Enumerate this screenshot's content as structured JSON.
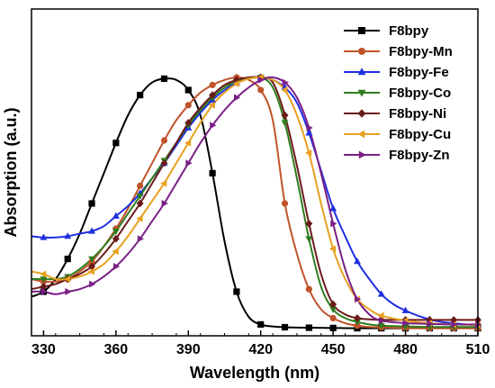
{
  "chart_data": {
    "type": "line",
    "xlabel": "Wavelength (nm)",
    "ylabel": "Absorption (a.u.)",
    "xlim": [
      325,
      510
    ],
    "ylim": [
      0,
      1.0
    ],
    "x_ticks": [
      330,
      360,
      390,
      420,
      450,
      480,
      510
    ],
    "y_ticks_shown": false,
    "grid": false,
    "legend_position": "top-right",
    "series": [
      {
        "name": "F8bpy",
        "color": "#000000",
        "marker": "square",
        "points": [
          [
            325,
            0.13
          ],
          [
            330,
            0.15
          ],
          [
            335,
            0.2
          ],
          [
            340,
            0.28
          ],
          [
            345,
            0.38
          ],
          [
            350,
            0.5
          ],
          [
            355,
            0.62
          ],
          [
            360,
            0.74
          ],
          [
            365,
            0.85
          ],
          [
            370,
            0.93
          ],
          [
            375,
            0.98
          ],
          [
            380,
            0.995
          ],
          [
            385,
            0.99
          ],
          [
            390,
            0.95
          ],
          [
            395,
            0.85
          ],
          [
            400,
            0.62
          ],
          [
            405,
            0.35
          ],
          [
            410,
            0.15
          ],
          [
            415,
            0.05
          ],
          [
            420,
            0.02
          ],
          [
            425,
            0.012
          ],
          [
            430,
            0.009
          ],
          [
            440,
            0.007
          ],
          [
            450,
            0.006
          ],
          [
            460,
            0.005
          ],
          [
            470,
            0.005
          ],
          [
            480,
            0.005
          ],
          [
            490,
            0.005
          ],
          [
            500,
            0.005
          ],
          [
            510,
            0.005
          ]
        ]
      },
      {
        "name": "F8bpy-Mn",
        "color": "#C0532A",
        "marker": "circle",
        "points": [
          [
            325,
            0.2
          ],
          [
            330,
            0.19
          ],
          [
            335,
            0.19
          ],
          [
            340,
            0.2
          ],
          [
            345,
            0.23
          ],
          [
            350,
            0.27
          ],
          [
            355,
            0.33
          ],
          [
            360,
            0.4
          ],
          [
            365,
            0.48
          ],
          [
            370,
            0.57
          ],
          [
            375,
            0.66
          ],
          [
            380,
            0.75
          ],
          [
            385,
            0.83
          ],
          [
            390,
            0.89
          ],
          [
            395,
            0.94
          ],
          [
            400,
            0.97
          ],
          [
            405,
            0.99
          ],
          [
            410,
            1.0
          ],
          [
            415,
            0.99
          ],
          [
            420,
            0.95
          ],
          [
            425,
            0.83
          ],
          [
            430,
            0.5
          ],
          [
            435,
            0.3
          ],
          [
            440,
            0.16
          ],
          [
            445,
            0.08
          ],
          [
            450,
            0.045
          ],
          [
            455,
            0.025
          ],
          [
            460,
            0.015
          ],
          [
            465,
            0.01
          ],
          [
            470,
            0.008
          ],
          [
            480,
            0.006
          ],
          [
            490,
            0.005
          ],
          [
            500,
            0.005
          ],
          [
            510,
            0.005
          ]
        ]
      },
      {
        "name": "F8bpy-Fe",
        "color": "#1F2FE0",
        "marker": "triangle-up",
        "points": [
          [
            325,
            0.37
          ],
          [
            330,
            0.365
          ],
          [
            335,
            0.365
          ],
          [
            340,
            0.37
          ],
          [
            345,
            0.38
          ],
          [
            350,
            0.39
          ],
          [
            355,
            0.41
          ],
          [
            360,
            0.45
          ],
          [
            365,
            0.49
          ],
          [
            370,
            0.54
          ],
          [
            375,
            0.6
          ],
          [
            380,
            0.66
          ],
          [
            385,
            0.73
          ],
          [
            390,
            0.8
          ],
          [
            395,
            0.86
          ],
          [
            400,
            0.91
          ],
          [
            405,
            0.95
          ],
          [
            410,
            0.98
          ],
          [
            415,
            0.995
          ],
          [
            420,
            1.0
          ],
          [
            425,
            0.99
          ],
          [
            430,
            0.96
          ],
          [
            435,
            0.9
          ],
          [
            440,
            0.78
          ],
          [
            445,
            0.63
          ],
          [
            450,
            0.48
          ],
          [
            455,
            0.37
          ],
          [
            460,
            0.27
          ],
          [
            465,
            0.2
          ],
          [
            470,
            0.14
          ],
          [
            475,
            0.1
          ],
          [
            480,
            0.075
          ],
          [
            485,
            0.055
          ],
          [
            490,
            0.04
          ],
          [
            495,
            0.03
          ],
          [
            500,
            0.025
          ],
          [
            505,
            0.02
          ],
          [
            510,
            0.018
          ]
        ]
      },
      {
        "name": "F8bpy-Co",
        "color": "#2E7D1E",
        "marker": "triangle-down",
        "points": [
          [
            325,
            0.2
          ],
          [
            330,
            0.2
          ],
          [
            335,
            0.2
          ],
          [
            340,
            0.21
          ],
          [
            345,
            0.24
          ],
          [
            350,
            0.28
          ],
          [
            355,
            0.33
          ],
          [
            360,
            0.39
          ],
          [
            365,
            0.46
          ],
          [
            370,
            0.53
          ],
          [
            375,
            0.6
          ],
          [
            380,
            0.67
          ],
          [
            385,
            0.74
          ],
          [
            390,
            0.81
          ],
          [
            395,
            0.87
          ],
          [
            400,
            0.92
          ],
          [
            405,
            0.96
          ],
          [
            410,
            0.985
          ],
          [
            415,
            0.995
          ],
          [
            420,
            1.0
          ],
          [
            425,
            0.96
          ],
          [
            430,
            0.82
          ],
          [
            435,
            0.6
          ],
          [
            440,
            0.36
          ],
          [
            445,
            0.17
          ],
          [
            450,
            0.08
          ],
          [
            455,
            0.045
          ],
          [
            460,
            0.03
          ],
          [
            465,
            0.02
          ],
          [
            470,
            0.015
          ],
          [
            480,
            0.012
          ],
          [
            490,
            0.01
          ],
          [
            500,
            0.01
          ],
          [
            510,
            0.01
          ]
        ]
      },
      {
        "name": "F8bpy-Ni",
        "color": "#6B1A1A",
        "marker": "diamond",
        "points": [
          [
            325,
            0.16
          ],
          [
            330,
            0.17
          ],
          [
            335,
            0.18
          ],
          [
            340,
            0.2
          ],
          [
            345,
            0.22
          ],
          [
            350,
            0.25
          ],
          [
            355,
            0.3
          ],
          [
            360,
            0.36
          ],
          [
            365,
            0.43
          ],
          [
            370,
            0.5
          ],
          [
            375,
            0.58
          ],
          [
            380,
            0.66
          ],
          [
            385,
            0.74
          ],
          [
            390,
            0.82
          ],
          [
            395,
            0.88
          ],
          [
            400,
            0.93
          ],
          [
            405,
            0.97
          ],
          [
            410,
            0.99
          ],
          [
            415,
            1.0
          ],
          [
            420,
            1.0
          ],
          [
            425,
            0.98
          ],
          [
            430,
            0.85
          ],
          [
            435,
            0.65
          ],
          [
            440,
            0.42
          ],
          [
            445,
            0.22
          ],
          [
            450,
            0.1
          ],
          [
            455,
            0.06
          ],
          [
            460,
            0.045
          ],
          [
            465,
            0.04
          ],
          [
            470,
            0.038
          ],
          [
            480,
            0.038
          ],
          [
            490,
            0.038
          ],
          [
            500,
            0.038
          ],
          [
            510,
            0.038
          ]
        ]
      },
      {
        "name": "F8bpy-Cu",
        "color": "#E8A020",
        "marker": "triangle-left",
        "points": [
          [
            325,
            0.23
          ],
          [
            330,
            0.22
          ],
          [
            335,
            0.2
          ],
          [
            340,
            0.2
          ],
          [
            345,
            0.21
          ],
          [
            350,
            0.23
          ],
          [
            355,
            0.26
          ],
          [
            360,
            0.31
          ],
          [
            365,
            0.37
          ],
          [
            370,
            0.44
          ],
          [
            375,
            0.51
          ],
          [
            380,
            0.58
          ],
          [
            385,
            0.66
          ],
          [
            390,
            0.74
          ],
          [
            395,
            0.82
          ],
          [
            400,
            0.89
          ],
          [
            405,
            0.94
          ],
          [
            410,
            0.975
          ],
          [
            415,
            0.995
          ],
          [
            420,
            1.0
          ],
          [
            425,
            0.99
          ],
          [
            430,
            0.95
          ],
          [
            435,
            0.85
          ],
          [
            440,
            0.7
          ],
          [
            445,
            0.5
          ],
          [
            450,
            0.32
          ],
          [
            455,
            0.2
          ],
          [
            460,
            0.12
          ],
          [
            465,
            0.08
          ],
          [
            470,
            0.055
          ],
          [
            480,
            0.035
          ],
          [
            490,
            0.025
          ],
          [
            500,
            0.02
          ],
          [
            510,
            0.018
          ]
        ]
      },
      {
        "name": "F8bpy-Zn",
        "color": "#7A1F86",
        "marker": "triangle-right",
        "points": [
          [
            325,
            0.15
          ],
          [
            330,
            0.15
          ],
          [
            335,
            0.14
          ],
          [
            340,
            0.15
          ],
          [
            345,
            0.16
          ],
          [
            350,
            0.18
          ],
          [
            355,
            0.21
          ],
          [
            360,
            0.25
          ],
          [
            365,
            0.3
          ],
          [
            370,
            0.36
          ],
          [
            375,
            0.43
          ],
          [
            380,
            0.5
          ],
          [
            385,
            0.58
          ],
          [
            390,
            0.66
          ],
          [
            395,
            0.74
          ],
          [
            400,
            0.81
          ],
          [
            405,
            0.87
          ],
          [
            410,
            0.92
          ],
          [
            415,
            0.96
          ],
          [
            420,
            0.99
          ],
          [
            425,
            1.0
          ],
          [
            430,
            0.98
          ],
          [
            435,
            0.92
          ],
          [
            440,
            0.8
          ],
          [
            445,
            0.62
          ],
          [
            450,
            0.42
          ],
          [
            455,
            0.24
          ],
          [
            460,
            0.12
          ],
          [
            465,
            0.06
          ],
          [
            470,
            0.035
          ],
          [
            480,
            0.025
          ],
          [
            490,
            0.022
          ],
          [
            500,
            0.02
          ],
          [
            510,
            0.02
          ]
        ]
      }
    ]
  }
}
